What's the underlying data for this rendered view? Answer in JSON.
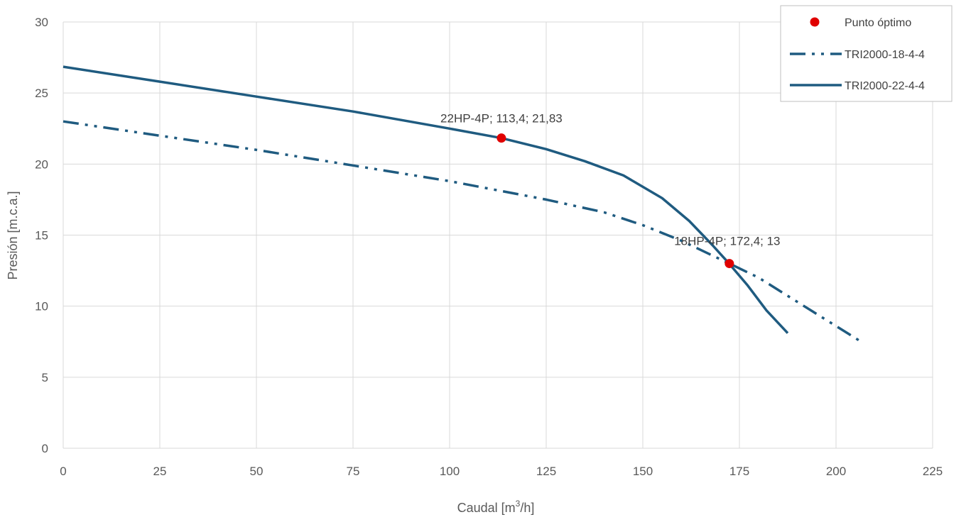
{
  "chart_data": {
    "type": "line",
    "title": "",
    "xlabel": "Caudal [m³/h]",
    "xlabel_main": "Caudal [m",
    "xlabel_sup": "3",
    "xlabel_end": "/h]",
    "ylabel": "Presión [m.c.a.]",
    "xlim": [
      0,
      225
    ],
    "ylim": [
      0,
      30
    ],
    "x_ticks": [
      0,
      25,
      50,
      75,
      100,
      125,
      150,
      175,
      200,
      225
    ],
    "y_ticks": [
      0,
      5,
      10,
      15,
      20,
      25,
      30
    ],
    "grid": true,
    "legend_position": "top-right",
    "series": [
      {
        "name": "Punto óptimo",
        "kind": "scatter",
        "color": "#e00000",
        "points": [
          {
            "x": 113.4,
            "y": 21.83,
            "label": "22HP-4P; 113,4; 21,83"
          },
          {
            "x": 172.4,
            "y": 13,
            "label": "18HP-4P; 172,4; 13"
          }
        ]
      },
      {
        "name": "TRI2000-18-4-4",
        "kind": "line",
        "dash": "dash-dot-dot",
        "color": "#1f5b80",
        "points": [
          {
            "x": 0,
            "y": 23.0
          },
          {
            "x": 25,
            "y": 22.0
          },
          {
            "x": 50,
            "y": 21.0
          },
          {
            "x": 75,
            "y": 19.9
          },
          {
            "x": 100,
            "y": 18.8
          },
          {
            "x": 125,
            "y": 17.5
          },
          {
            "x": 140,
            "y": 16.6
          },
          {
            "x": 150,
            "y": 15.7
          },
          {
            "x": 160,
            "y": 14.6
          },
          {
            "x": 172.4,
            "y": 13.0
          },
          {
            "x": 180,
            "y": 12.0
          },
          {
            "x": 190,
            "y": 10.3
          },
          {
            "x": 200,
            "y": 8.6
          },
          {
            "x": 206.5,
            "y": 7.5
          }
        ]
      },
      {
        "name": "TRI2000-22-4-4",
        "kind": "line",
        "dash": "solid",
        "color": "#1f5b80",
        "points": [
          {
            "x": 0,
            "y": 26.85
          },
          {
            "x": 25,
            "y": 25.8
          },
          {
            "x": 50,
            "y": 24.75
          },
          {
            "x": 75,
            "y": 23.7
          },
          {
            "x": 100,
            "y": 22.5
          },
          {
            "x": 113.4,
            "y": 21.83
          },
          {
            "x": 125,
            "y": 21.05
          },
          {
            "x": 135,
            "y": 20.2
          },
          {
            "x": 145,
            "y": 19.2
          },
          {
            "x": 155,
            "y": 17.6
          },
          {
            "x": 162,
            "y": 16.0
          },
          {
            "x": 168,
            "y": 14.3
          },
          {
            "x": 172,
            "y": 13.1
          },
          {
            "x": 177,
            "y": 11.5
          },
          {
            "x": 182,
            "y": 9.7
          },
          {
            "x": 187.5,
            "y": 8.1
          }
        ]
      }
    ]
  }
}
